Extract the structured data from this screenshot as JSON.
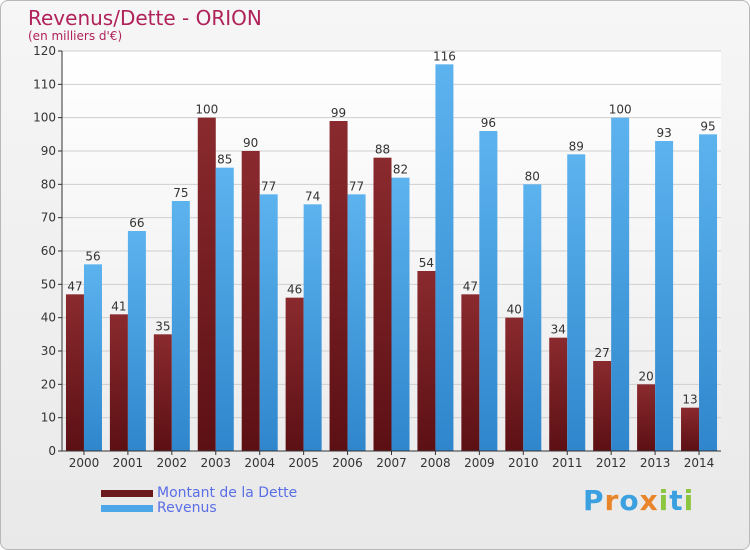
{
  "header": {
    "title": "Revenus/Dette - ORION",
    "subtitle": "(en milliers d'€)"
  },
  "chart_data": {
    "type": "bar",
    "categories": [
      "2000",
      "2001",
      "2002",
      "2003",
      "2004",
      "2005",
      "2006",
      "2007",
      "2008",
      "2009",
      "2010",
      "2011",
      "2012",
      "2013",
      "2014"
    ],
    "series": [
      {
        "name": "Montant de la Dette",
        "color": "#7a1e22",
        "values": [
          47,
          41,
          35,
          100,
          90,
          46,
          99,
          88,
          54,
          47,
          40,
          34,
          27,
          20,
          13
        ]
      },
      {
        "name": "Revenus",
        "color": "#4da6e8",
        "values": [
          56,
          66,
          75,
          85,
          77,
          74,
          77,
          82,
          116,
          96,
          80,
          89,
          100,
          93,
          95
        ]
      }
    ],
    "ylim": [
      0,
      120
    ],
    "yticks": [
      0,
      10,
      20,
      30,
      40,
      50,
      60,
      70,
      80,
      90,
      100,
      110,
      120
    ],
    "grid": true,
    "legend_position": "bottom-left"
  },
  "brand": {
    "letters": [
      "P",
      "r",
      "o",
      "x",
      "i",
      "t",
      "i"
    ],
    "colors": [
      "#3aa0e0",
      "#e8842a",
      "#3aa0e0",
      "#e8842a",
      "#8cc63f",
      "#3aa0e0",
      "#8cc63f"
    ]
  }
}
